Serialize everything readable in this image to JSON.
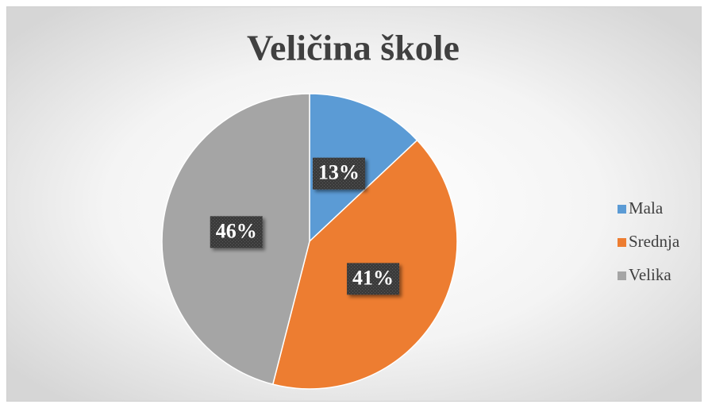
{
  "chart_data": {
    "type": "pie",
    "title": "Veličina škole",
    "categories": [
      "Mala",
      "Srednja",
      "Velika"
    ],
    "values": [
      13,
      41,
      46
    ],
    "value_labels": [
      "13%",
      "41%",
      "46%"
    ],
    "colors": [
      "#5b9bd5",
      "#ed7d31",
      "#a5a5a5"
    ],
    "legend": "right"
  }
}
